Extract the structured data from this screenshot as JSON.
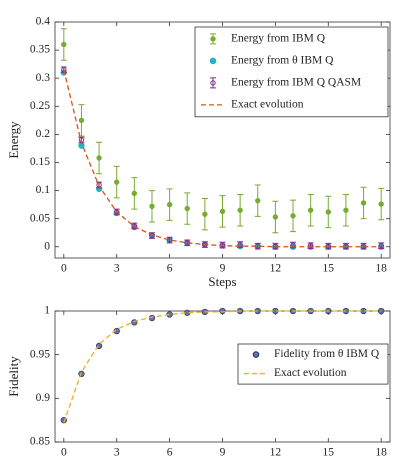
{
  "chart_data": [
    {
      "type": "line",
      "xlabel": "Steps",
      "ylabel": "Energy",
      "x": [
        0,
        1,
        2,
        3,
        4,
        5,
        6,
        7,
        8,
        9,
        10,
        11,
        12,
        13,
        14,
        15,
        16,
        17,
        18
      ],
      "xlim": [
        -0.5,
        18.5
      ],
      "xticks": [
        0,
        3,
        6,
        9,
        12,
        15,
        18
      ],
      "ylim": [
        -0.02,
        0.4
      ],
      "yticks": [
        0,
        0.05,
        0.1,
        0.15,
        0.2,
        0.25,
        0.3,
        0.35,
        0.4
      ],
      "legend": "upper right",
      "series": [
        {
          "name": "Energy from IBM Q",
          "color": "#77ac30",
          "style": "errorbar",
          "values": [
            0.36,
            0.225,
            0.158,
            0.115,
            0.095,
            0.072,
            0.075,
            0.068,
            0.058,
            0.063,
            0.065,
            0.082,
            0.053,
            0.055,
            0.065,
            0.062,
            0.065,
            0.078,
            0.076
          ],
          "errors": [
            0.028,
            0.028,
            0.028,
            0.028,
            0.028,
            0.028,
            0.028,
            0.028,
            0.028,
            0.028,
            0.028,
            0.028,
            0.028,
            0.028,
            0.028,
            0.028,
            0.028,
            0.028,
            0.028
          ]
        },
        {
          "name": "Energy from θ IBM Q",
          "color": "#1fb5c8",
          "style": "dot",
          "values": [
            0.31,
            0.18,
            0.103,
            0.06,
            0.035,
            0.02,
            0.012,
            0.007,
            0.004,
            0.002,
            0.001,
            0.001,
            0,
            0,
            0,
            0,
            0,
            0,
            0
          ]
        },
        {
          "name": "Energy from IBM Q QASM",
          "color": "#7e2f8e",
          "style": "errorbar",
          "values": [
            0.315,
            0.19,
            0.11,
            0.062,
            0.037,
            0.02,
            0.012,
            0.007,
            0.004,
            0.003,
            0.004,
            0.001,
            0.001,
            0.003,
            0.002,
            0.001,
            0.001,
            0.001,
            0.002
          ],
          "errors": [
            0.005,
            0.005,
            0.005,
            0.005,
            0.005,
            0.005,
            0.005,
            0.005,
            0.005,
            0.005,
            0.005,
            0.005,
            0.005,
            0.005,
            0.005,
            0.005,
            0.005,
            0.005,
            0.005
          ]
        },
        {
          "name": "Exact evolution",
          "color": "#d95319",
          "style": "dashed",
          "values": [
            0.315,
            0.185,
            0.108,
            0.062,
            0.036,
            0.021,
            0.012,
            0.007,
            0.004,
            0.002,
            0.001,
            0.001,
            0,
            0,
            0,
            0,
            0,
            0,
            0
          ]
        }
      ]
    },
    {
      "type": "line",
      "xlabel": "Steps",
      "ylabel": "Fidelity",
      "x": [
        0,
        1,
        2,
        3,
        4,
        5,
        6,
        7,
        8,
        9,
        10,
        11,
        12,
        13,
        14,
        15,
        16,
        17,
        18
      ],
      "xlim": [
        -0.5,
        18.5
      ],
      "xticks": [
        0,
        3,
        6,
        9,
        12,
        15,
        18
      ],
      "ylim": [
        0.85,
        1
      ],
      "yticks": [
        0.85,
        0.9,
        0.95,
        1
      ],
      "legend": "center right",
      "series": [
        {
          "name": "Fidelity from θ IBM Q",
          "color": "#6272a8",
          "style": "dot",
          "values": [
            0.875,
            0.928,
            0.96,
            0.977,
            0.987,
            0.992,
            0.996,
            0.998,
            0.999,
            1,
            1,
            1,
            1,
            1,
            1,
            1,
            1,
            1,
            1
          ]
        },
        {
          "name": "Exact evolution",
          "color": "#edb120",
          "style": "dashed",
          "values": [
            0.872,
            0.93,
            0.962,
            0.979,
            0.988,
            0.993,
            0.996,
            0.998,
            0.999,
            0.999,
            1,
            1,
            1,
            1,
            1,
            1,
            1,
            1,
            1
          ]
        }
      ]
    }
  ]
}
